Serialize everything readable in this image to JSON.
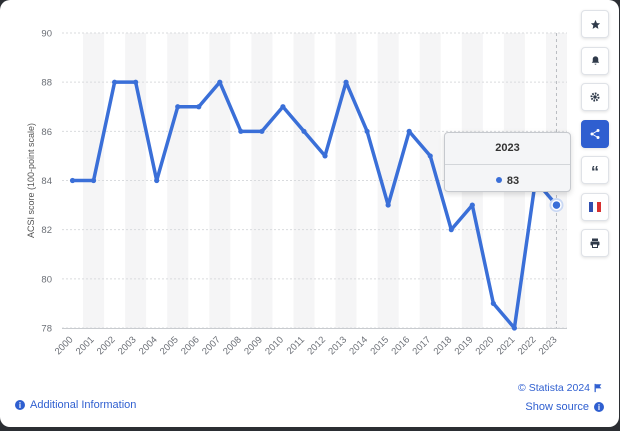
{
  "chart_data": {
    "type": "line",
    "ylabel": "ACSI score (100-point scale)",
    "xlabel": "",
    "ylim": [
      78,
      90
    ],
    "yticks": [
      "90",
      "88",
      "86",
      "84",
      "82",
      "80",
      "78"
    ],
    "grid": true,
    "categories": [
      "2000",
      "2001",
      "2002",
      "2003",
      "2004",
      "2005",
      "2006",
      "2007",
      "2008",
      "2009",
      "2010",
      "2011",
      "2012",
      "2013",
      "2014",
      "2015",
      "2016",
      "2017",
      "2018",
      "2019",
      "2020",
      "2021",
      "2022",
      "2023"
    ],
    "series": [
      {
        "values": [
          84,
          84,
          88,
          88,
          84,
          87,
          87,
          88,
          86,
          86,
          87,
          86,
          85,
          88,
          86,
          83,
          86,
          85,
          82,
          83,
          79,
          78,
          84,
          83
        ]
      }
    ],
    "color": "#3a6fd8"
  },
  "tooltip": {
    "title": "2023",
    "value": "83"
  },
  "toolbar": {
    "star_icon": "★",
    "bell_icon": "🔔",
    "gear_icon": "⚙",
    "share_icon": "share",
    "quote_icon": "“",
    "flag_icon": "flag",
    "print_icon": "print"
  },
  "footer": {
    "additional_info": "Additional Information",
    "copyright": "© Statista 2024",
    "show_source": "Show source"
  }
}
